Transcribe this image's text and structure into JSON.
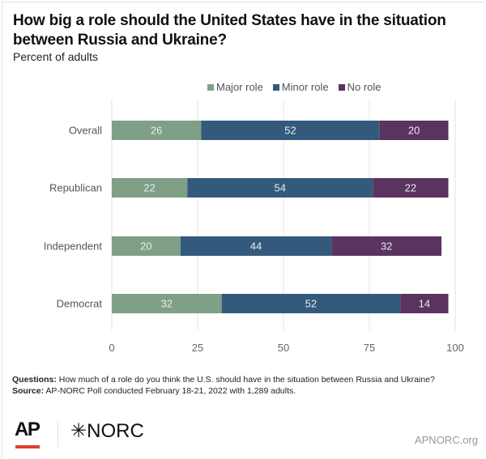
{
  "header": {
    "title": "How big a role should the United States have in the situation between Russia and Ukraine?",
    "subtitle": "Percent of adults"
  },
  "chart_data": {
    "type": "bar",
    "orientation": "horizontal",
    "stacked": true,
    "title": "How big a role should the United States have in the situation between Russia and Ukraine?",
    "subtitle": "Percent of adults",
    "categories": [
      "Overall",
      "Republican",
      "Independent",
      "Democrat"
    ],
    "series": [
      {
        "name": "Major role",
        "color": "#7f9f86",
        "values": [
          26,
          22,
          20,
          32
        ]
      },
      {
        "name": "Minor role",
        "color": "#335a7c",
        "values": [
          52,
          54,
          44,
          52
        ]
      },
      {
        "name": "No role",
        "color": "#5a335f",
        "values": [
          20,
          22,
          32,
          14
        ]
      }
    ],
    "xlim": [
      0,
      100
    ],
    "xticks": [
      0,
      25,
      50,
      75,
      100
    ],
    "xlabel": "",
    "ylabel": "",
    "grid": true,
    "legend": "top-center",
    "data_labels": true
  },
  "legend": [
    {
      "label": "Major role",
      "color": "#7f9f86"
    },
    {
      "label": "Minor role",
      "color": "#335a7c"
    },
    {
      "label": "No role",
      "color": "#5a335f"
    }
  ],
  "notes": {
    "questions_label": "Questions:",
    "questions_text": " How much of a role do you think the U.S. should have in the situation between Russia and Ukraine?",
    "source_label": "Source:",
    "source_text": " AP-NORC Poll conducted February 18-21, 2022 with 1,289 adults."
  },
  "footer": {
    "ap_logo": "AP",
    "norc_logo": "✳NORC",
    "site": "APNORC.org"
  }
}
